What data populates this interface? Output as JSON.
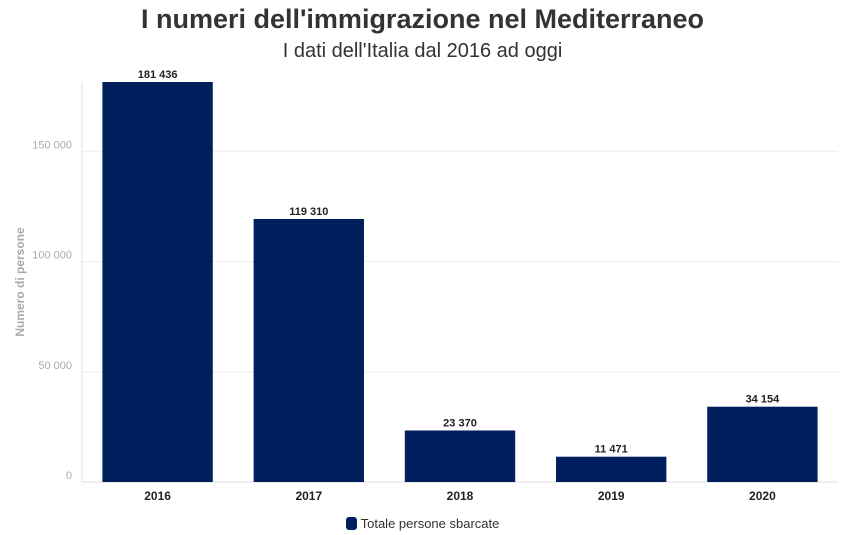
{
  "chart_data": {
    "type": "bar",
    "title": "I numeri dell'immigrazione nel Mediterraneo",
    "subtitle": "I dati dell'Italia dal 2016 ad oggi",
    "ylabel": "Numero di persone",
    "xlabel": "",
    "categories": [
      "2016",
      "2017",
      "2018",
      "2019",
      "2020"
    ],
    "values": [
      181436,
      119310,
      23370,
      11471,
      34154
    ],
    "data_labels": [
      "181 436",
      "119 310",
      "23 370",
      "11 471",
      "34 154"
    ],
    "yticks": [
      0,
      50000,
      100000,
      150000
    ],
    "ytick_labels": [
      "0",
      "50 000",
      "100 000",
      "150 000"
    ],
    "ylim": [
      0,
      181436
    ],
    "grid": true,
    "legend_position": "bottom",
    "series": [
      {
        "name": "Totale persone sbarcate",
        "color": "#001f5c"
      }
    ]
  }
}
